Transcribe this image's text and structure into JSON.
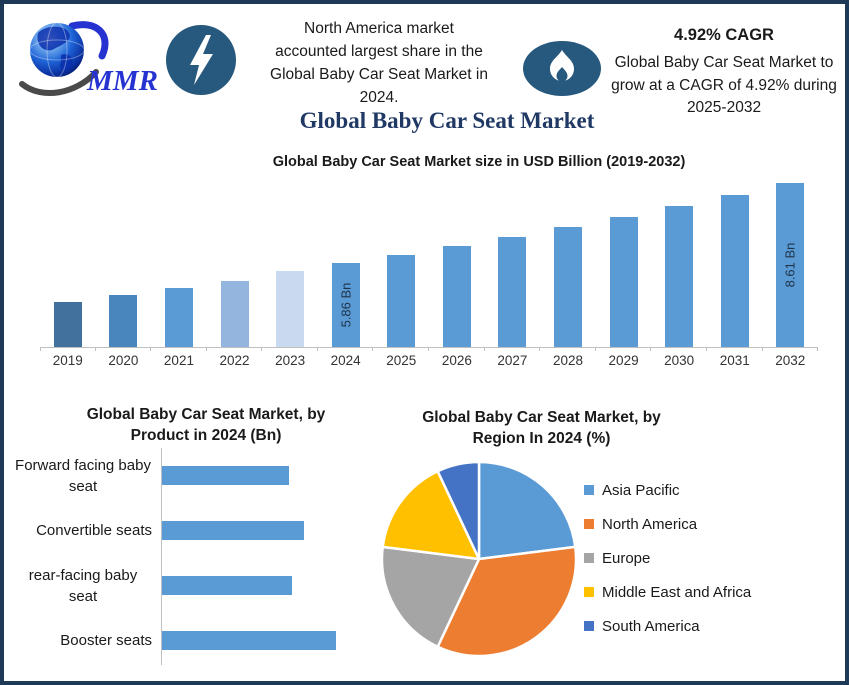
{
  "brand": {
    "logo_text": "MMR"
  },
  "header": {
    "na_note": {
      "lines": [
        "North America market",
        "accounted largest share in the",
        "Global Baby Car Seat Market in",
        "2024."
      ]
    },
    "cagr": {
      "heading": "4.92% CAGR",
      "lines": [
        "Global Baby Car Seat Market to",
        "grow at a CAGR of 4.92% during",
        "2025-2032"
      ]
    },
    "main_title": "Global Baby Car Seat Market"
  },
  "colors": {
    "frame_border": "#1F3A56",
    "icon_circle_bg": "#27587D",
    "main_title_blue": "#1F3864",
    "logo_text_blue": "#2733D0",
    "bar_blue": "#5B9BD5",
    "axis_gray": "#BFBFBF"
  },
  "chart_data": [
    {
      "type": "bar",
      "title": "Global Baby Car Seat Market size in USD Billion (2019-2032)",
      "categories": [
        "2019",
        "2020",
        "2021",
        "2022",
        "2023",
        "2024",
        "2025",
        "2026",
        "2027",
        "2028",
        "2029",
        "2030",
        "2031",
        "2032"
      ],
      "values": [
        4.53,
        4.77,
        5.01,
        5.25,
        5.59,
        5.86,
        6.15,
        6.45,
        6.77,
        7.1,
        7.45,
        7.82,
        8.2,
        8.61
      ],
      "unit": "USD Billion",
      "bar_colors": [
        "#41719C",
        "#4A86BE",
        "#5B9BD5",
        "#93B5DE",
        "#C9D9F0",
        "#5B9BD5",
        "#5B9BD5",
        "#5B9BD5",
        "#5B9BD5",
        "#5B9BD5",
        "#5B9BD5",
        "#5B9BD5",
        "#5B9BD5",
        "#5B9BD5"
      ],
      "data_labels": [
        {
          "category": "2024",
          "text": "5.86 Bn"
        },
        {
          "category": "2032",
          "text": "8.61 Bn"
        }
      ],
      "ylim_effective": [
        3.0,
        9.0
      ],
      "grid": false,
      "legend": false
    },
    {
      "type": "bar",
      "orientation": "horizontal",
      "title": "Global Baby Car Seat Market, by Product in 2024 (Bn)",
      "categories": [
        "Forward facing baby seat",
        "Convertible seats",
        "rear-facing baby seat",
        "Booster seats"
      ],
      "values": [
        1.3,
        1.45,
        1.33,
        1.78
      ],
      "xlim": [
        0,
        2
      ],
      "color": "#5B9BD5",
      "grid": false,
      "legend": false
    },
    {
      "type": "pie",
      "title": "Global Baby Car Seat Market, by Region In 2024 (%)",
      "labels": [
        "Asia Pacific",
        "North America",
        "Europe",
        "Middle East and Africa",
        "South America"
      ],
      "values": [
        23,
        34,
        20,
        16,
        7
      ],
      "colors": [
        "#5B9BD5",
        "#ED7D31",
        "#A5A5A5",
        "#FFC000",
        "#4472C4"
      ],
      "legend_position": "right",
      "start_angle_deg": 0,
      "clockwise": true
    }
  ]
}
